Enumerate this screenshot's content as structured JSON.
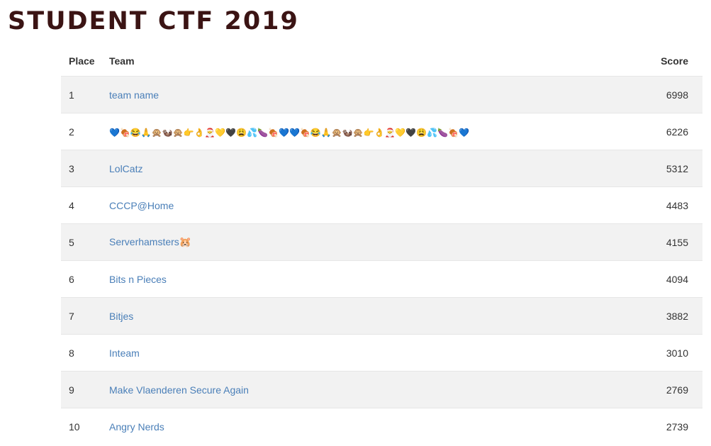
{
  "page": {
    "title": "STUDENT CTF 2019"
  },
  "table": {
    "headers": {
      "place": "Place",
      "team": "Team",
      "score": "Score"
    },
    "rows": [
      {
        "place": "1",
        "team": "team name",
        "score": "6998"
      },
      {
        "place": "2",
        "team": "💙🍖😂🙏🙊🦦🙊👉👌🎅💛🖤😩💦🍆🍖💙💙🍖😂🙏🙊🦦🙊👉👌🎅💛🖤😩💦🍆🍖💙",
        "score": "6226"
      },
      {
        "place": "3",
        "team": "LolCatz",
        "score": "5312"
      },
      {
        "place": "4",
        "team": "CCCP@Home",
        "score": "4483"
      },
      {
        "place": "5",
        "team": "Serverhamsters🐹",
        "score": "4155"
      },
      {
        "place": "6",
        "team": "Bits n Pieces",
        "score": "4094"
      },
      {
        "place": "7",
        "team": "Bitjes",
        "score": "3882"
      },
      {
        "place": "8",
        "team": "Inteam",
        "score": "3010"
      },
      {
        "place": "9",
        "team": "Make Vlaenderen Secure Again",
        "score": "2769"
      },
      {
        "place": "10",
        "team": "Angry Nerds",
        "score": "2739"
      }
    ]
  },
  "colors": {
    "title": "#3b1414",
    "link": "#4a7fb8",
    "stripe": "#f2f2f2"
  }
}
